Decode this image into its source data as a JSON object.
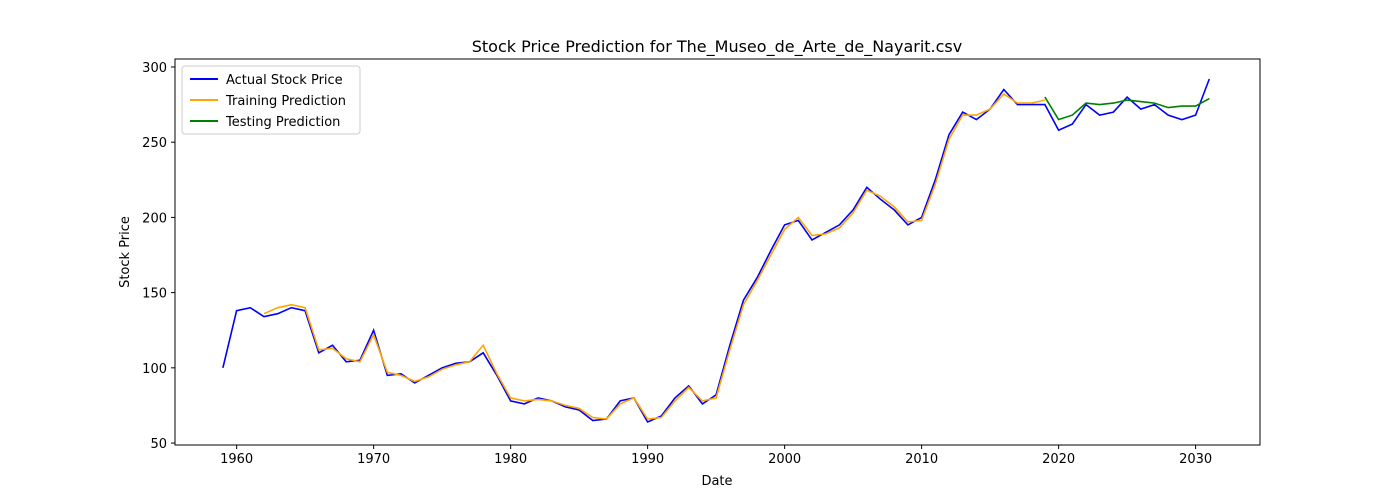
{
  "chart_data": {
    "type": "line",
    "title": "Stock Price Prediction for The_Museo_de_Arte_de_Nayarit.csv",
    "x_label": "Date",
    "y_label": "Stock Price",
    "x": [
      1959,
      1960,
      1961,
      1962,
      1963,
      1964,
      1965,
      1966,
      1967,
      1968,
      1969,
      1970,
      1971,
      1972,
      1973,
      1974,
      1975,
      1976,
      1977,
      1978,
      1979,
      1980,
      1981,
      1982,
      1983,
      1984,
      1985,
      1986,
      1987,
      1988,
      1989,
      1990,
      1991,
      1992,
      1993,
      1994,
      1995,
      1996,
      1997,
      1998,
      1999,
      2000,
      2001,
      2002,
      2003,
      2004,
      2005,
      2006,
      2007,
      2008,
      2009,
      2010,
      2011,
      2012,
      2013,
      2014,
      2015,
      2016,
      2017,
      2018,
      2019,
      2020,
      2021,
      2022,
      2023,
      2024,
      2025,
      2026,
      2027,
      2028,
      2029,
      2030,
      2031
    ],
    "series": [
      {
        "name": "Actual Stock Price",
        "color": "#0000ff",
        "values": [
          100,
          138,
          140,
          134,
          136,
          140,
          138,
          110,
          115,
          104,
          105,
          125,
          95,
          96,
          90,
          95,
          100,
          103,
          104,
          110,
          95,
          78,
          76,
          80,
          78,
          74,
          72,
          65,
          66,
          78,
          80,
          64,
          68,
          80,
          88,
          76,
          82,
          115,
          145,
          160,
          178,
          195,
          198,
          185,
          190,
          195,
          205,
          220,
          212,
          205,
          195,
          200,
          225,
          255,
          270,
          265,
          272,
          285,
          275,
          275,
          275,
          258,
          262,
          275,
          268,
          270,
          280,
          272,
          275,
          268,
          265,
          268,
          292
        ]
      },
      {
        "name": "Training Prediction",
        "color": "#ffa500",
        "values": [
          null,
          null,
          null,
          136,
          140,
          142,
          140,
          112,
          113,
          106,
          104,
          122,
          97,
          95,
          91,
          94,
          99,
          102,
          104,
          115,
          96,
          80,
          78,
          79,
          78,
          75,
          73,
          67,
          66,
          76,
          80,
          66,
          67,
          78,
          87,
          78,
          80,
          112,
          142,
          158,
          175,
          192,
          200,
          188,
          189,
          193,
          203,
          218,
          214,
          207,
          197,
          198,
          222,
          252,
          268,
          268,
          272,
          282,
          276,
          276,
          278,
          null,
          null,
          null,
          null,
          null,
          null,
          null,
          null,
          null,
          null,
          null,
          null
        ]
      },
      {
        "name": "Testing Prediction",
        "color": "#008000",
        "values": [
          null,
          null,
          null,
          null,
          null,
          null,
          null,
          null,
          null,
          null,
          null,
          null,
          null,
          null,
          null,
          null,
          null,
          null,
          null,
          null,
          null,
          null,
          null,
          null,
          null,
          null,
          null,
          null,
          null,
          null,
          null,
          null,
          null,
          null,
          null,
          null,
          null,
          null,
          null,
          null,
          null,
          null,
          null,
          null,
          null,
          null,
          null,
          null,
          null,
          null,
          null,
          null,
          null,
          null,
          null,
          null,
          null,
          null,
          null,
          null,
          280,
          265,
          268,
          276,
          275,
          276,
          278,
          277,
          276,
          273,
          274,
          274,
          279
        ]
      }
    ],
    "xlim": [
      1955.5,
      2034.7
    ],
    "ylim": [
      48.7,
      305.3
    ],
    "xticks": [
      1960,
      1970,
      1980,
      1990,
      2000,
      2010,
      2020,
      2030
    ],
    "yticks": [
      50,
      100,
      150,
      200,
      250,
      300
    ],
    "legend": "upper left"
  }
}
